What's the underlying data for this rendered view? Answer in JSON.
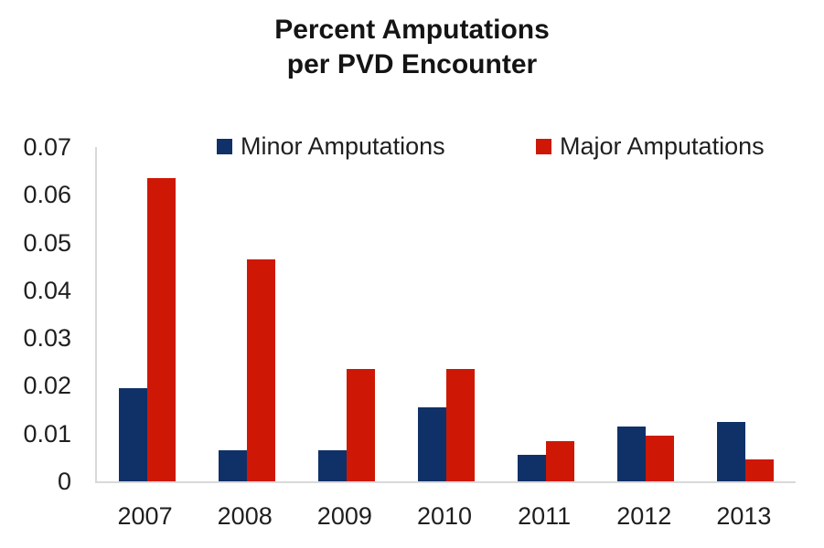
{
  "title": {
    "line1": "Percent Amputations",
    "line2": "per PVD Encounter"
  },
  "colors": {
    "minor_series": "#103168",
    "major_series": "#CE1805",
    "axis_line": "#D9D9D9",
    "text": "#1F1F1F"
  },
  "chart_data": {
    "type": "bar",
    "title": "Percent Amputations per PVD Encounter",
    "xlabel": "",
    "ylabel": "",
    "categories": [
      "2007",
      "2008",
      "2009",
      "2010",
      "2011",
      "2012",
      "2013"
    ],
    "series": [
      {
        "name": "Minor Amputations",
        "color": "#103168",
        "values": [
          0.0195,
          0.0065,
          0.0065,
          0.0155,
          0.0055,
          0.0115,
          0.0125
        ]
      },
      {
        "name": "Major Amputations",
        "color": "#CE1805",
        "values": [
          0.0635,
          0.0465,
          0.0235,
          0.0235,
          0.0085,
          0.0095,
          0.0045
        ]
      }
    ],
    "ylim": [
      0,
      0.07
    ],
    "ytick_labels": [
      "0",
      "0.01",
      "0.02",
      "0.03",
      "0.04",
      "0.05",
      "0.06",
      "0.07"
    ],
    "grid": false,
    "legend_position": "top"
  }
}
